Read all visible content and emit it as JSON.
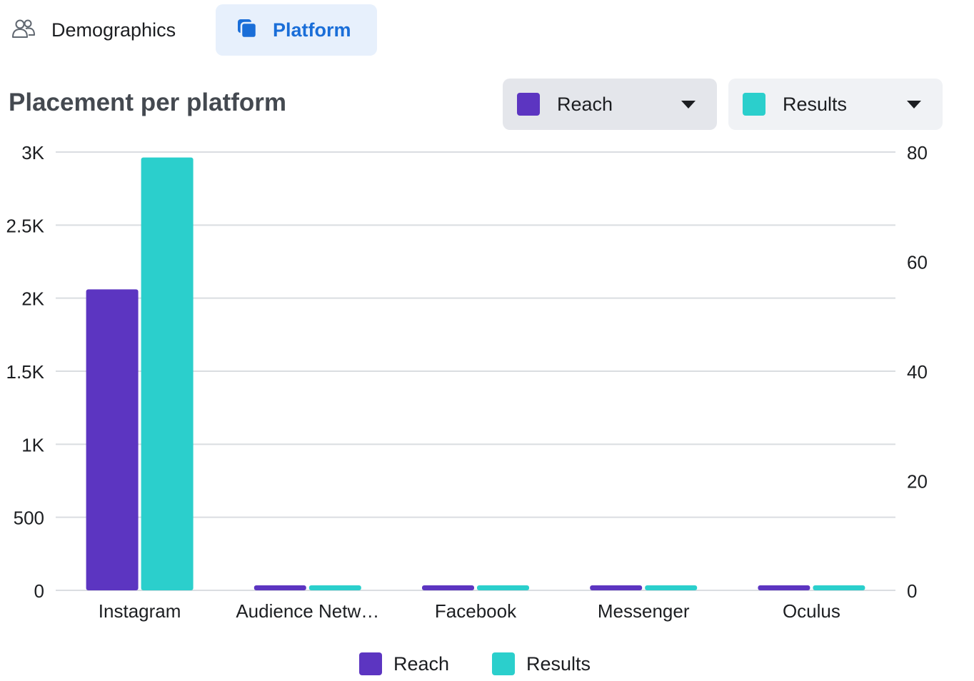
{
  "tabs": [
    {
      "label": "Demographics",
      "icon": "people-icon",
      "selected": false
    },
    {
      "label": "Platform",
      "icon": "platform-icon",
      "selected": true
    }
  ],
  "title": "Placement per platform",
  "dropdowns": [
    {
      "label": "Reach",
      "color": "#5c35c1"
    },
    {
      "label": "Results",
      "color": "#2bcfcc"
    }
  ],
  "colors": {
    "reach": "#5c35c1",
    "results": "#2bcfcc",
    "accent": "#1a6ed8",
    "grid": "#dadde1"
  },
  "chart_data": {
    "type": "bar",
    "title": "Placement per platform",
    "categories": [
      "Instagram",
      "Audience Netw…",
      "Facebook",
      "Messenger",
      "Oculus"
    ],
    "series": [
      {
        "name": "Reach",
        "axis": "left",
        "values": [
          2060,
          0,
          0,
          0,
          0
        ]
      },
      {
        "name": "Results",
        "axis": "right",
        "values": [
          79,
          0,
          0,
          0,
          0
        ]
      }
    ],
    "y_left": {
      "range": [
        0,
        3000
      ],
      "ticks": [
        0,
        500,
        1000,
        1500,
        2000,
        2500,
        3000
      ],
      "tick_labels": [
        "0",
        "500",
        "1K",
        "1.5K",
        "2K",
        "2.5K",
        "3K"
      ]
    },
    "y_right": {
      "range": [
        0,
        80
      ],
      "ticks": [
        0,
        20,
        40,
        60,
        80
      ],
      "tick_labels": [
        "0",
        "20",
        "40",
        "60",
        "80"
      ]
    },
    "grid": true,
    "legend": "bottom-center"
  },
  "legend": [
    {
      "label": "Reach",
      "color": "#5c35c1"
    },
    {
      "label": "Results",
      "color": "#2bcfcc"
    }
  ]
}
